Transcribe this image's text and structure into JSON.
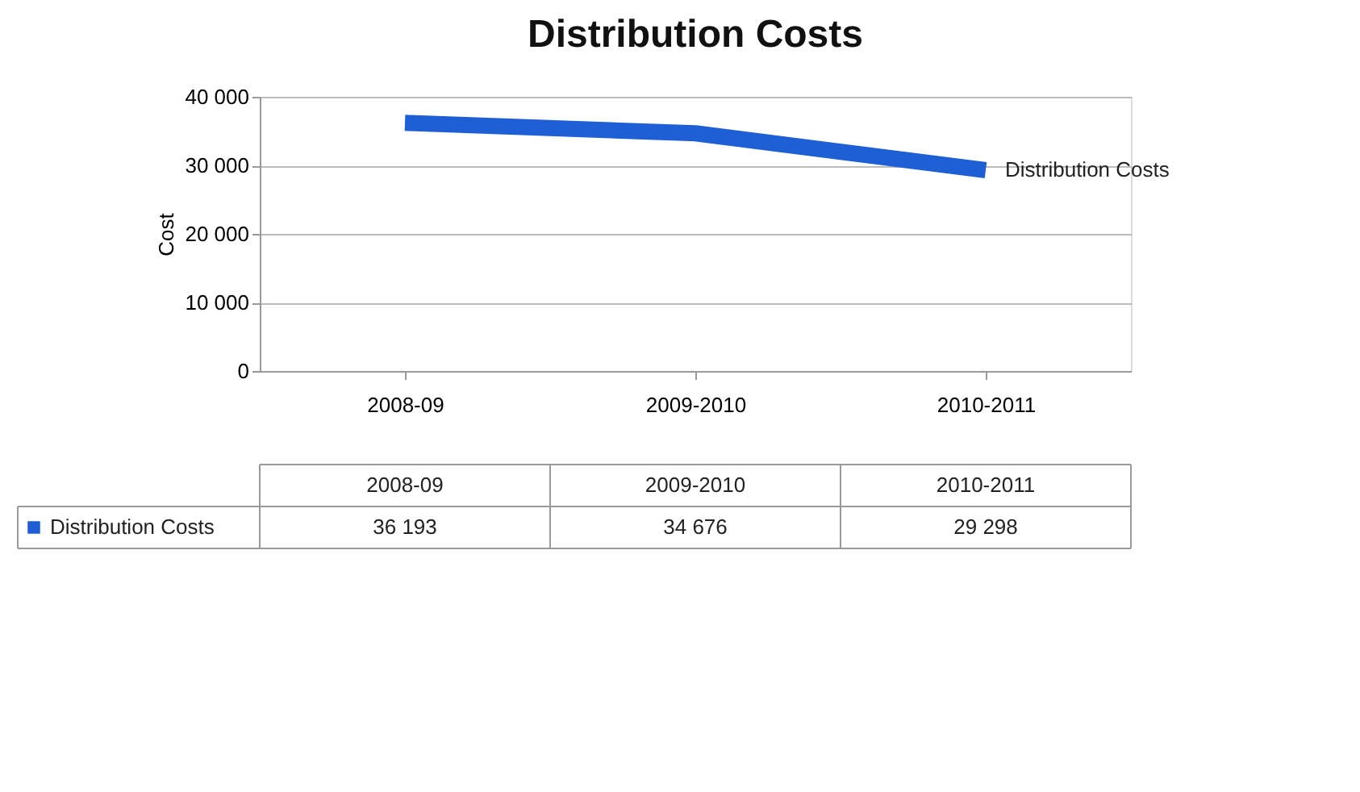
{
  "chart_data": {
    "type": "line",
    "title": "Distribution Costs",
    "ylabel": "Cost",
    "categories": [
      "2008-09",
      "2009-2010",
      "2010-2011"
    ],
    "series": [
      {
        "name": "Distribution Costs",
        "color": "#1f5fd6",
        "values": [
          36193,
          34676,
          29298
        ],
        "value_labels": [
          "36 193",
          "34 676",
          "29 298"
        ]
      }
    ],
    "ylim": [
      0,
      40000
    ],
    "yticks": [
      {
        "value": 0,
        "label": "0"
      },
      {
        "value": 10000,
        "label": "10 000"
      },
      {
        "value": 20000,
        "label": "20 000"
      },
      {
        "value": 30000,
        "label": "30 000"
      },
      {
        "value": 40000,
        "label": "40 000"
      }
    ],
    "grid": "y",
    "legend": "bottom",
    "marker": "none",
    "line_style": "solid"
  }
}
